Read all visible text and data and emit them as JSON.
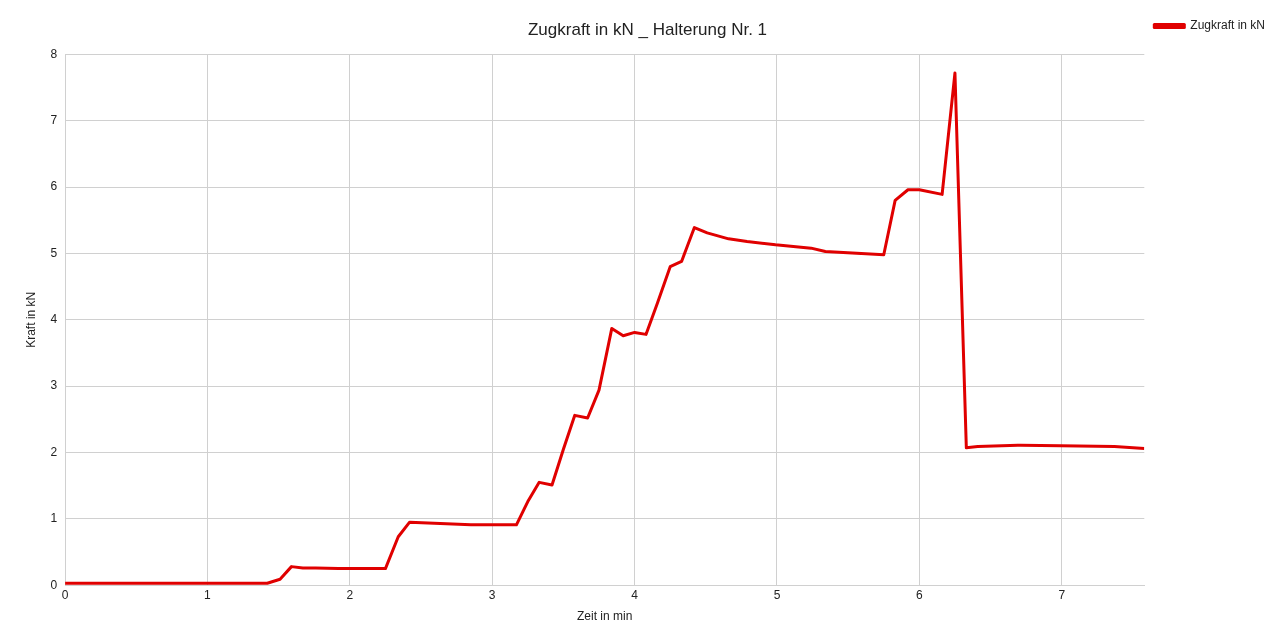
{
  "chart_data": {
    "type": "line",
    "title": "Zugkraft in kN _ Halterung Nr. 1",
    "xlabel": "Zeit in min",
    "ylabel": "Kraft in kN",
    "xlim": [
      0,
      7.58
    ],
    "xticks": [
      0,
      1,
      2,
      3,
      4,
      5,
      6,
      7
    ],
    "ylim": [
      0,
      8
    ],
    "yticks": [
      0,
      1,
      2,
      3,
      4,
      5,
      6,
      7,
      8
    ],
    "grid": true,
    "legend": "top right",
    "marker": "none",
    "line_style": "solid",
    "series": [
      {
        "name": "Zugkraft in kN",
        "color": "#e00000",
        "x": [
          0,
          1.42,
          1.51,
          1.59,
          1.67,
          1.76,
          1.92,
          2.25,
          2.34,
          2.42,
          2.85,
          3.17,
          3.25,
          3.33,
          3.42,
          3.5,
          3.58,
          3.67,
          3.75,
          3.84,
          3.92,
          4.0,
          4.08,
          4.16,
          4.25,
          4.33,
          4.42,
          4.51,
          4.66,
          4.79,
          4.99,
          5.24,
          5.34,
          5.75,
          5.83,
          5.92,
          6.0,
          6.16,
          6.25,
          6.33,
          6.41,
          6.71,
          6.99,
          7.37,
          7.58
        ],
        "values": [
          0.03,
          0.03,
          0.09,
          0.28,
          0.26,
          0.26,
          0.25,
          0.25,
          0.73,
          0.95,
          0.91,
          0.91,
          1.26,
          1.55,
          1.51,
          2.05,
          2.56,
          2.52,
          2.94,
          3.87,
          3.76,
          3.81,
          3.78,
          4.25,
          4.8,
          4.88,
          5.39,
          5.31,
          5.22,
          5.18,
          5.13,
          5.08,
          5.03,
          4.98,
          5.8,
          5.96,
          5.96,
          5.89,
          7.72,
          2.07,
          2.09,
          2.11,
          2.1,
          2.09,
          2.06
        ]
      }
    ]
  }
}
